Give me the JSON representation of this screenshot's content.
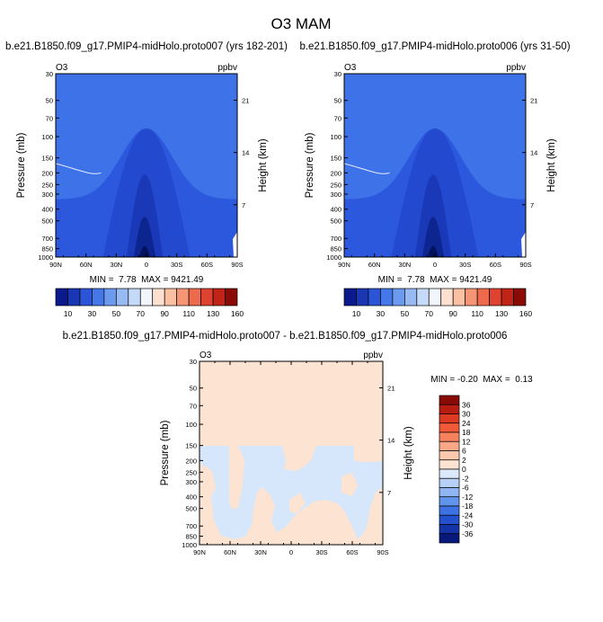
{
  "figure_title": "O3 MAM",
  "chart_data": [
    {
      "type": "heatmap",
      "title": "b.e21.B1850.f09_g17.PMIP4-midHolo.proto007 (yrs 182-201)",
      "left_label": "O3",
      "right_label": "ppbv",
      "xlabel": "",
      "ylabel": "Pressure (mb)",
      "right_axis_label": "Height (km)",
      "x_ticks": [
        "90N",
        "60N",
        "30N",
        "0",
        "30S",
        "60S",
        "90S"
      ],
      "y_ticks": [
        "30",
        "50",
        "70",
        "100",
        "150",
        "200",
        "250",
        "300",
        "400",
        "500",
        "700",
        "850",
        "1000"
      ],
      "right_ticks": [
        "21",
        "14",
        "7"
      ],
      "stats": "MIN =  7.78  MAX = 9421.49",
      "colorbar_labels": [
        "10",
        "30",
        "50",
        "70",
        "90",
        "110",
        "130",
        "160"
      ],
      "colorbar_levels": [
        10,
        20,
        30,
        40,
        50,
        60,
        70,
        80,
        90,
        100,
        110,
        120,
        130,
        140,
        160
      ],
      "min": 7.78,
      "max": 9421.49
    },
    {
      "type": "heatmap",
      "title": "b.e21.B1850.f09_g17.PMIP4-midHolo.proto006 (yrs 31-50)",
      "left_label": "O3",
      "right_label": "ppbv",
      "xlabel": "",
      "ylabel": "Pressure (mb)",
      "right_axis_label": "Height (km)",
      "x_ticks": [
        "90N",
        "60N",
        "30N",
        "0",
        "30S",
        "60S",
        "90S"
      ],
      "y_ticks": [
        "30",
        "50",
        "70",
        "100",
        "150",
        "200",
        "250",
        "300",
        "400",
        "500",
        "700",
        "850",
        "1000"
      ],
      "right_ticks": [
        "21",
        "14",
        "7"
      ],
      "stats": "MIN =  7.78  MAX = 9421.49",
      "colorbar_labels": [
        "10",
        "30",
        "50",
        "70",
        "90",
        "110",
        "130",
        "160"
      ],
      "colorbar_levels": [
        10,
        20,
        30,
        40,
        50,
        60,
        70,
        80,
        90,
        100,
        110,
        120,
        130,
        140,
        160
      ],
      "min": 7.78,
      "max": 9421.49
    },
    {
      "type": "heatmap",
      "title": "b.e21.B1850.f09_g17.PMIP4-midHolo.proto007 - b.e21.B1850.f09_g17.PMIP4-midHolo.proto006",
      "left_label": "O3",
      "right_label": "ppbv",
      "xlabel": "",
      "ylabel": "Pressure (mb)",
      "right_axis_label": "Height (km)",
      "x_ticks": [
        "90N",
        "60N",
        "30N",
        "0",
        "30S",
        "60S",
        "90S"
      ],
      "y_ticks": [
        "30",
        "50",
        "70",
        "100",
        "150",
        "200",
        "250",
        "300",
        "400",
        "500",
        "700",
        "850",
        "1000"
      ],
      "right_ticks": [
        "21",
        "14",
        "7"
      ],
      "stats": "MIN = -0.20  MAX =  0.13",
      "colorbar_labels": [
        "36",
        "30",
        "24",
        "18",
        "12",
        "6",
        "2",
        "0",
        "-2",
        "-6",
        "-12",
        "-18",
        "-24",
        "-30",
        "-36"
      ],
      "min": -0.2,
      "max": 0.13
    }
  ]
}
